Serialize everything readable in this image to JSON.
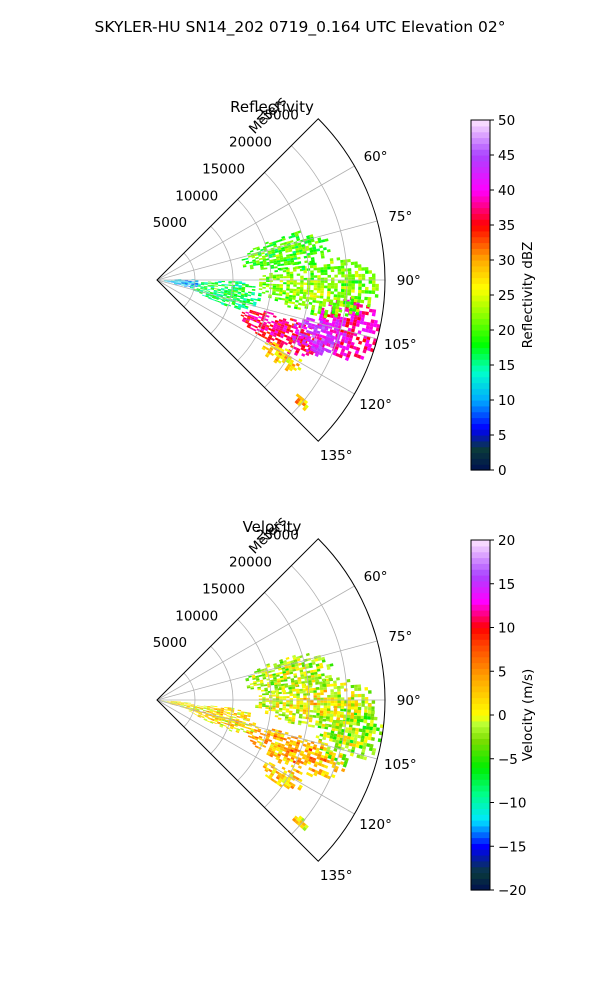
{
  "suptitle": "SKYLER-HU  SN14_202  0719_0.164 UTC Elevation 02°",
  "chart_data": [
    {
      "type": "heatmap",
      "subtype": "polar-sector",
      "title": "Reflectivity",
      "range_axis_label": "Meters",
      "range_ticks": [
        5000,
        10000,
        15000,
        20000,
        25000
      ],
      "range_tick_labels": [
        "5000",
        "10000",
        "15000",
        "20000",
        "25000"
      ],
      "range_max": 30000,
      "azimuth_ticks": [
        60,
        75,
        90,
        105,
        120,
        135
      ],
      "azimuth_tick_labels": [
        "60°",
        "75°",
        "90°",
        "105°",
        "120°",
        "135°"
      ],
      "azimuth_range": [
        45,
        135
      ],
      "grid": true,
      "colorbar": {
        "label": "Reflectivity dBZ",
        "min": 0,
        "max": 50,
        "ticks": [
          0,
          5,
          10,
          15,
          20,
          25,
          30,
          35,
          40,
          45,
          50
        ],
        "tick_labels": [
          "0",
          "5",
          "10",
          "15",
          "20",
          "25",
          "30",
          "35",
          "40",
          "45",
          "50"
        ],
        "stops": [
          {
            "v": 0,
            "c": "#001050"
          },
          {
            "v": 3,
            "c": "#0a3a3a"
          },
          {
            "v": 6,
            "c": "#0000ff"
          },
          {
            "v": 10,
            "c": "#00aaff"
          },
          {
            "v": 14,
            "c": "#00ffcc"
          },
          {
            "v": 18,
            "c": "#00ff00"
          },
          {
            "v": 22,
            "c": "#88ff00"
          },
          {
            "v": 26,
            "c": "#ffff00"
          },
          {
            "v": 30,
            "c": "#ffaa00"
          },
          {
            "v": 35,
            "c": "#ff0000"
          },
          {
            "v": 40,
            "c": "#ff00ff"
          },
          {
            "v": 45,
            "c": "#aa44ff"
          },
          {
            "v": 50,
            "c": "#ffe6ff"
          }
        ]
      },
      "echo_regions": [
        {
          "az": 104,
          "r": 25500,
          "daz": 9,
          "dr": 4500,
          "value": 38
        },
        {
          "az": 112,
          "r": 17500,
          "daz": 7,
          "dr": 6000,
          "value": 36
        },
        {
          "az": 109,
          "r": 22000,
          "daz": 6,
          "dr": 3500,
          "value": 42
        },
        {
          "az": 92,
          "r": 21000,
          "daz": 10,
          "dr": 8000,
          "value": 21
        },
        {
          "az": 78,
          "r": 17000,
          "daz": 8,
          "dr": 6000,
          "value": 19
        },
        {
          "az": 100,
          "r": 9000,
          "daz": 10,
          "dr": 5000,
          "value": 16
        },
        {
          "az": 95,
          "r": 3000,
          "daz": 8,
          "dr": 2500,
          "value": 10
        },
        {
          "az": 121,
          "r": 19000,
          "daz": 4,
          "dr": 3000,
          "value": 27
        },
        {
          "az": 130,
          "r": 24500,
          "daz": 2,
          "dr": 1200,
          "value": 27
        }
      ]
    },
    {
      "type": "heatmap",
      "subtype": "polar-sector",
      "title": "Velocity",
      "range_axis_label": "Meters",
      "range_ticks": [
        5000,
        10000,
        15000,
        20000,
        25000
      ],
      "range_tick_labels": [
        "5000",
        "10000",
        "15000",
        "20000",
        "25000"
      ],
      "range_max": 30000,
      "azimuth_ticks": [
        60,
        75,
        90,
        105,
        120,
        135
      ],
      "azimuth_tick_labels": [
        "60°",
        "75°",
        "90°",
        "105°",
        "120°",
        "135°"
      ],
      "azimuth_range": [
        45,
        135
      ],
      "grid": true,
      "colorbar": {
        "label": "Velocity (m/s)",
        "min": -20,
        "max": 20,
        "ticks": [
          -20,
          -15,
          -10,
          -5,
          0,
          5,
          10,
          15,
          20
        ],
        "tick_labels": [
          "−20",
          "−15",
          "−10",
          "−5",
          "0",
          "5",
          "10",
          "15",
          "20"
        ],
        "stops": [
          {
            "v": -20,
            "c": "#001050"
          },
          {
            "v": -18,
            "c": "#0a3a3a"
          },
          {
            "v": -15,
            "c": "#0000ff"
          },
          {
            "v": -12,
            "c": "#00e6ff"
          },
          {
            "v": -9,
            "c": "#00ff88"
          },
          {
            "v": -6,
            "c": "#00ee00"
          },
          {
            "v": -3,
            "c": "#77dd00"
          },
          {
            "v": -1,
            "c": "#bbff33"
          },
          {
            "v": 0,
            "c": "#ffff00"
          },
          {
            "v": 4,
            "c": "#ffaa00"
          },
          {
            "v": 8,
            "c": "#ff4400"
          },
          {
            "v": 10,
            "c": "#ff0000"
          },
          {
            "v": 13,
            "c": "#ff00ff"
          },
          {
            "v": 16,
            "c": "#aa44ff"
          },
          {
            "v": 20,
            "c": "#ffe6ff"
          }
        ]
      },
      "echo_regions": [
        {
          "az": 99,
          "r": 25500,
          "daz": 10,
          "dr": 4500,
          "value": -3
        },
        {
          "az": 110,
          "r": 19000,
          "daz": 7,
          "dr": 7000,
          "value": 3
        },
        {
          "az": 91,
          "r": 20500,
          "daz": 9,
          "dr": 8000,
          "value": -1
        },
        {
          "az": 79,
          "r": 17500,
          "daz": 8,
          "dr": 6000,
          "value": -2
        },
        {
          "az": 104,
          "r": 8500,
          "daz": 9,
          "dr": 5000,
          "value": 1
        },
        {
          "az": 100,
          "r": 2500,
          "daz": 7,
          "dr": 2500,
          "value": 0
        },
        {
          "az": 121,
          "r": 19000,
          "daz": 4,
          "dr": 3000,
          "value": 2
        },
        {
          "az": 130,
          "r": 24500,
          "daz": 2,
          "dr": 1200,
          "value": 1
        }
      ]
    }
  ]
}
